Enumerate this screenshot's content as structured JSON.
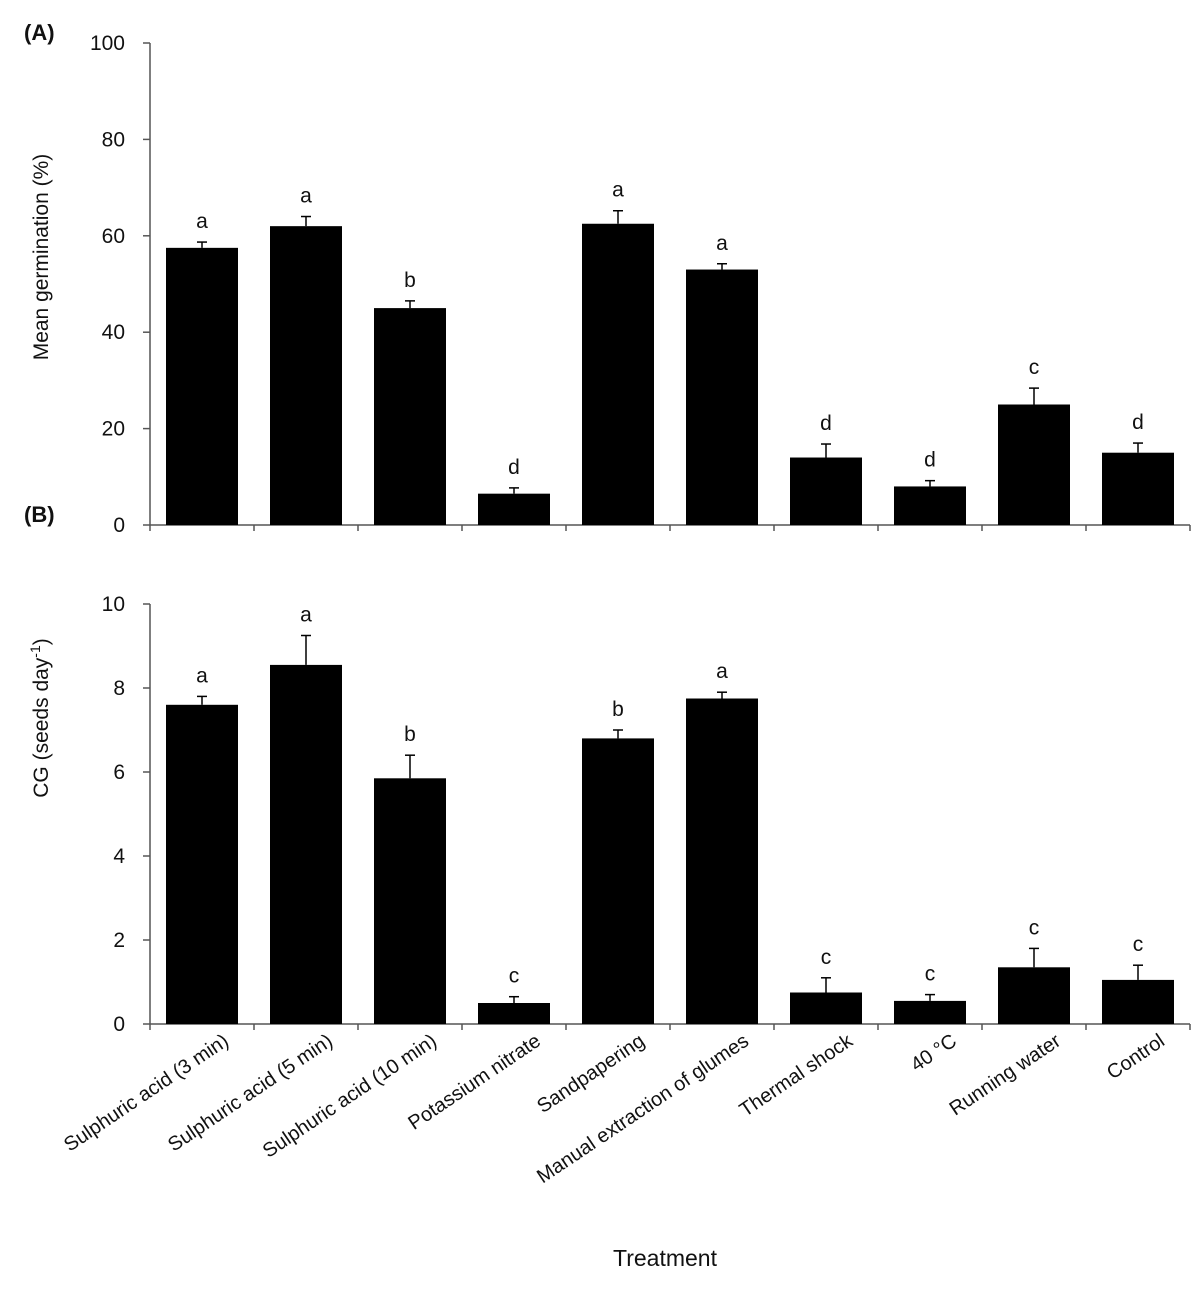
{
  "chart_data": [
    {
      "type": "bar",
      "panel_label": "(A)",
      "title": "",
      "xlabel": "",
      "ylabel": "Mean germination (%)",
      "ylim": [
        0,
        100
      ],
      "yticks": [
        "0",
        "20",
        "40",
        "60",
        "80",
        "100"
      ],
      "grid": false,
      "categories": [
        "Sulphuric acid (3 min)",
        "Sulphuric acid (5 min)",
        "Sulphuric acid (10 min)",
        "Potassium nitrate",
        "Sandpapering",
        "Manual extraction of glumes",
        "Thermal shock",
        "40 °C",
        "Running water",
        "Control"
      ],
      "values": [
        57.5,
        62,
        45,
        6.5,
        62.5,
        53,
        14,
        8,
        25,
        15
      ],
      "errors": [
        1.2,
        2,
        1.5,
        1.2,
        2.7,
        1.2,
        2.8,
        1.2,
        3.4,
        2
      ],
      "significance_letters": [
        "a",
        "a",
        "b",
        "d",
        "a",
        "a",
        "d",
        "d",
        "c",
        "d"
      ],
      "bar_color": "#000000"
    },
    {
      "type": "bar",
      "panel_label": "(B)",
      "title": "",
      "xlabel": "Treatment",
      "ylabel": "CG (seeds day",
      "ylabel_superscript": "-1",
      "ylabel_close": ")",
      "ylim": [
        0,
        10
      ],
      "yticks": [
        "0",
        "2",
        "4",
        "6",
        "8",
        "10"
      ],
      "grid": false,
      "categories": [
        "Sulphuric acid (3 min)",
        "Sulphuric acid (5 min)",
        "Sulphuric acid (10 min)",
        "Potassium nitrate",
        "Sandpapering",
        "Manual extraction of glumes",
        "Thermal shock",
        "40 °C",
        "Running water",
        "Control"
      ],
      "values": [
        7.6,
        8.55,
        5.85,
        0.5,
        6.8,
        7.75,
        0.75,
        0.55,
        1.35,
        1.05
      ],
      "errors": [
        0.2,
        0.7,
        0.55,
        0.15,
        0.2,
        0.15,
        0.35,
        0.15,
        0.45,
        0.35
      ],
      "significance_letters": [
        "a",
        "a",
        "b",
        "c",
        "b",
        "a",
        "c",
        "c",
        "c",
        "c"
      ],
      "bar_color": "#000000"
    }
  ]
}
